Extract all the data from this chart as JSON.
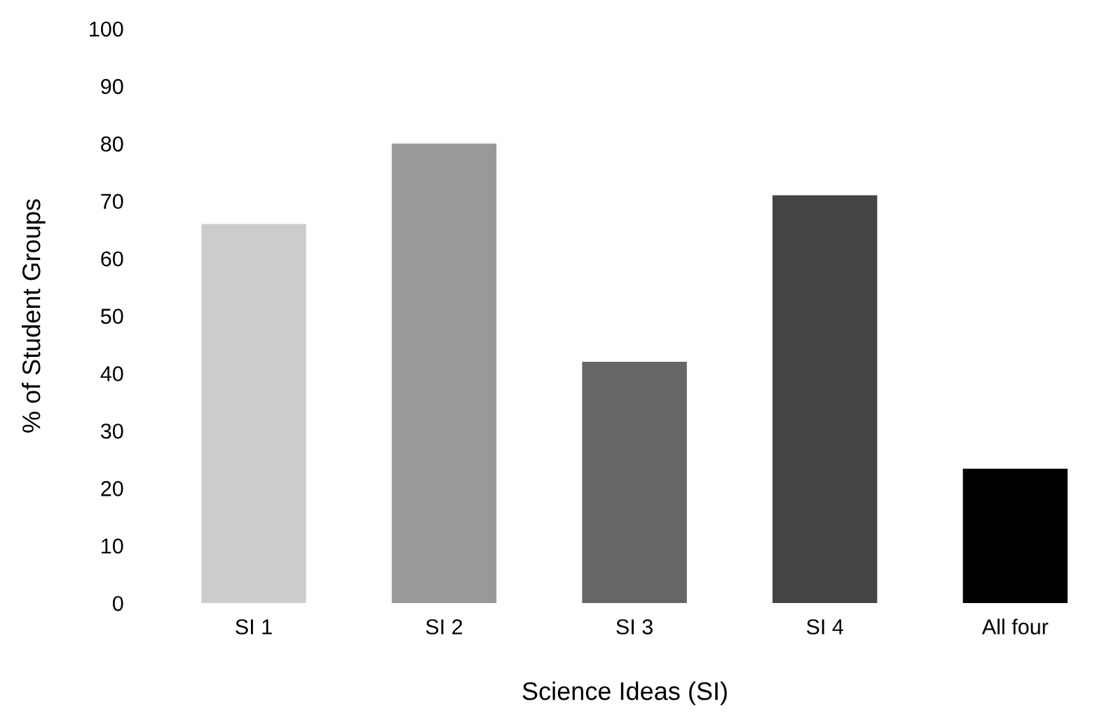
{
  "chart_data": {
    "type": "bar",
    "xlabel": "Science Ideas (SI)",
    "ylabel": "% of Student Groups",
    "categories": [
      "SI 1",
      "SI 2",
      "SI 3",
      "SI 4",
      "All four"
    ],
    "values": [
      66,
      80,
      42,
      71,
      23.4
    ],
    "colors": [
      "#cccccc",
      "#999999",
      "#666666",
      "#444444",
      "#000000"
    ],
    "ylim": [
      0,
      100
    ],
    "yticks": [
      0,
      10,
      20,
      30,
      40,
      50,
      60,
      70,
      80,
      90,
      100
    ],
    "grid": false,
    "legend": false
  }
}
